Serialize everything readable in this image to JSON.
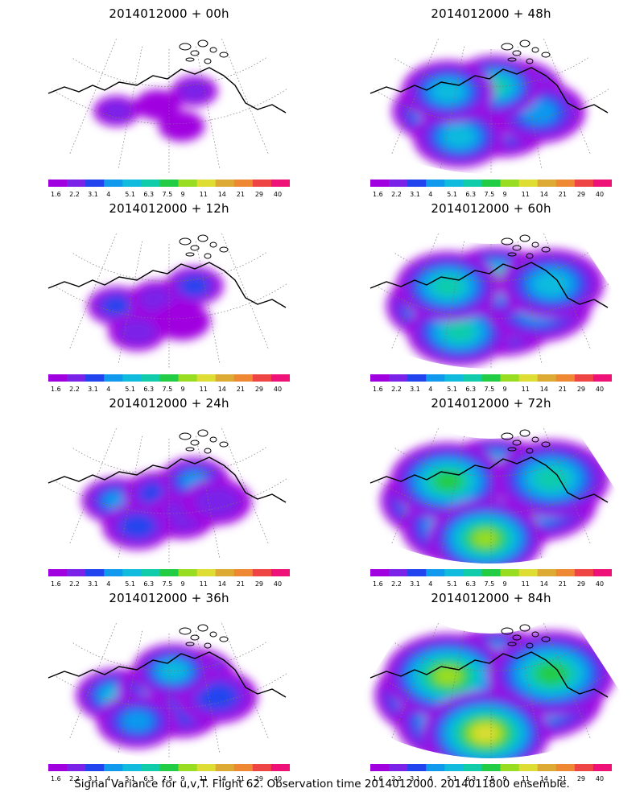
{
  "footer": "Signal Variance for u,v,T. Flight 62. Observation time 2014012000. 2014011800 ensemble.",
  "colorbar": {
    "labels": [
      "1.6",
      "2.2",
      "3.1",
      "4",
      "5.1",
      "6.3",
      "7.5",
      "9",
      "11",
      "14",
      "21",
      "29",
      "40"
    ],
    "colors": [
      "#a000e0",
      "#7a22e8",
      "#2244ee",
      "#1199ee",
      "#11bbdd",
      "#11ccaa",
      "#22cc44",
      "#99dd22",
      "#dddd33",
      "#ddaa33",
      "#ee8833",
      "#ee4444",
      "#ee1177"
    ]
  },
  "panels": [
    {
      "title": "2014012000 + 00h",
      "level": 1
    },
    {
      "title": "2014012000 + 48h",
      "level": 5
    },
    {
      "title": "2014012000 + 12h",
      "level": 2
    },
    {
      "title": "2014012000 + 60h",
      "level": 6
    },
    {
      "title": "2014012000 + 24h",
      "level": 3
    },
    {
      "title": "2014012000 + 72h",
      "level": 7
    },
    {
      "title": "2014012000 + 36h",
      "level": 4
    },
    {
      "title": "2014012000 + 84h",
      "level": 8
    }
  ]
}
